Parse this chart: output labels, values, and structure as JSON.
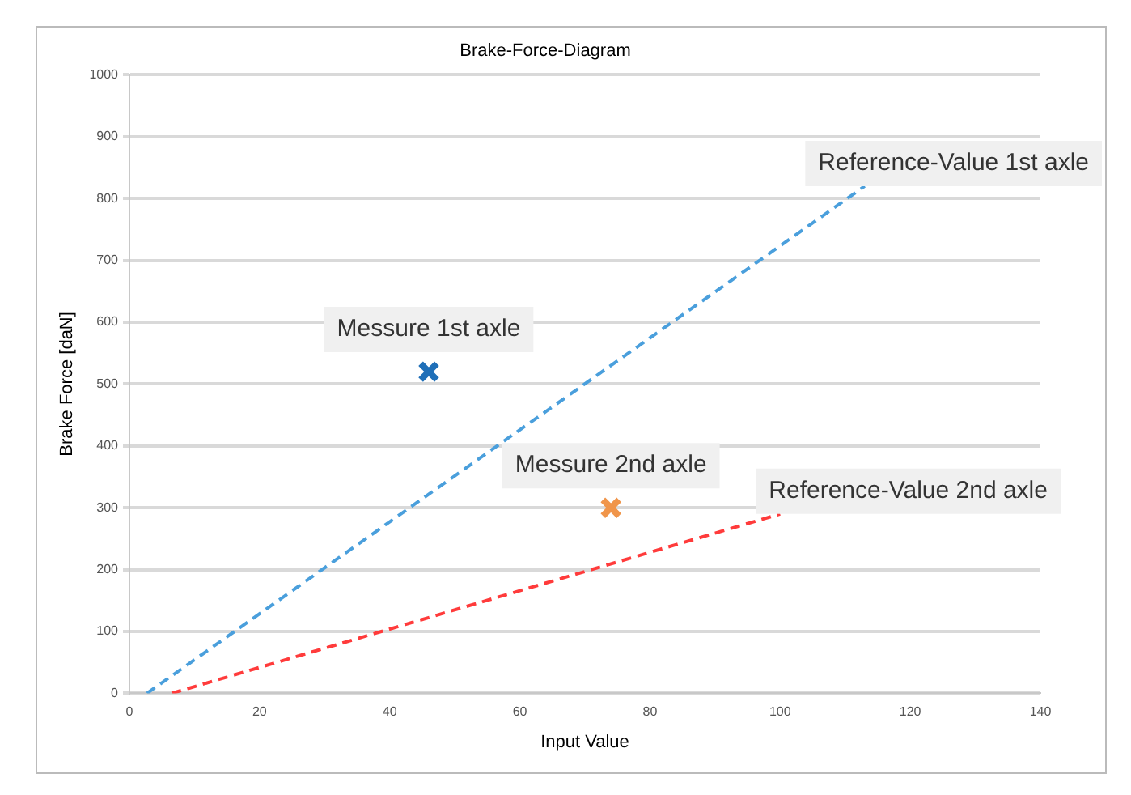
{
  "chart_data": {
    "type": "scatter",
    "title": "Brake-Force-Diagram",
    "xlabel": "Input Value",
    "ylabel": "Brake Force [daN]",
    "xlim": [
      0,
      140
    ],
    "xticks": [
      0,
      20,
      40,
      60,
      80,
      100,
      120,
      140
    ],
    "ylim": [
      0,
      1000
    ],
    "yticks": [
      0,
      100,
      200,
      300,
      400,
      500,
      600,
      700,
      800,
      900,
      1000
    ],
    "grid": "y",
    "legend": false,
    "series": [
      {
        "name": "Reference-Value 1st axle",
        "type": "line",
        "line_style": "dashed",
        "marker": "none",
        "color": "#4a9fdc",
        "x": [
          2.7,
          113
        ],
        "values": [
          0,
          820
        ]
      },
      {
        "name": "Reference-Value 2nd axle",
        "type": "line",
        "line_style": "dashed",
        "marker": "none",
        "color": "#ff3b3b",
        "x": [
          6.5,
          100
        ],
        "values": [
          0,
          290
        ]
      },
      {
        "name": "Messure 1st axle",
        "type": "scatter",
        "marker": "cross",
        "color": "#1f6fb8",
        "x": [
          46
        ],
        "values": [
          520
        ]
      },
      {
        "name": "Messure 2nd axle",
        "type": "scatter",
        "marker": "cross",
        "color": "#f0954a",
        "x": [
          74
        ],
        "values": [
          300
        ]
      }
    ]
  }
}
